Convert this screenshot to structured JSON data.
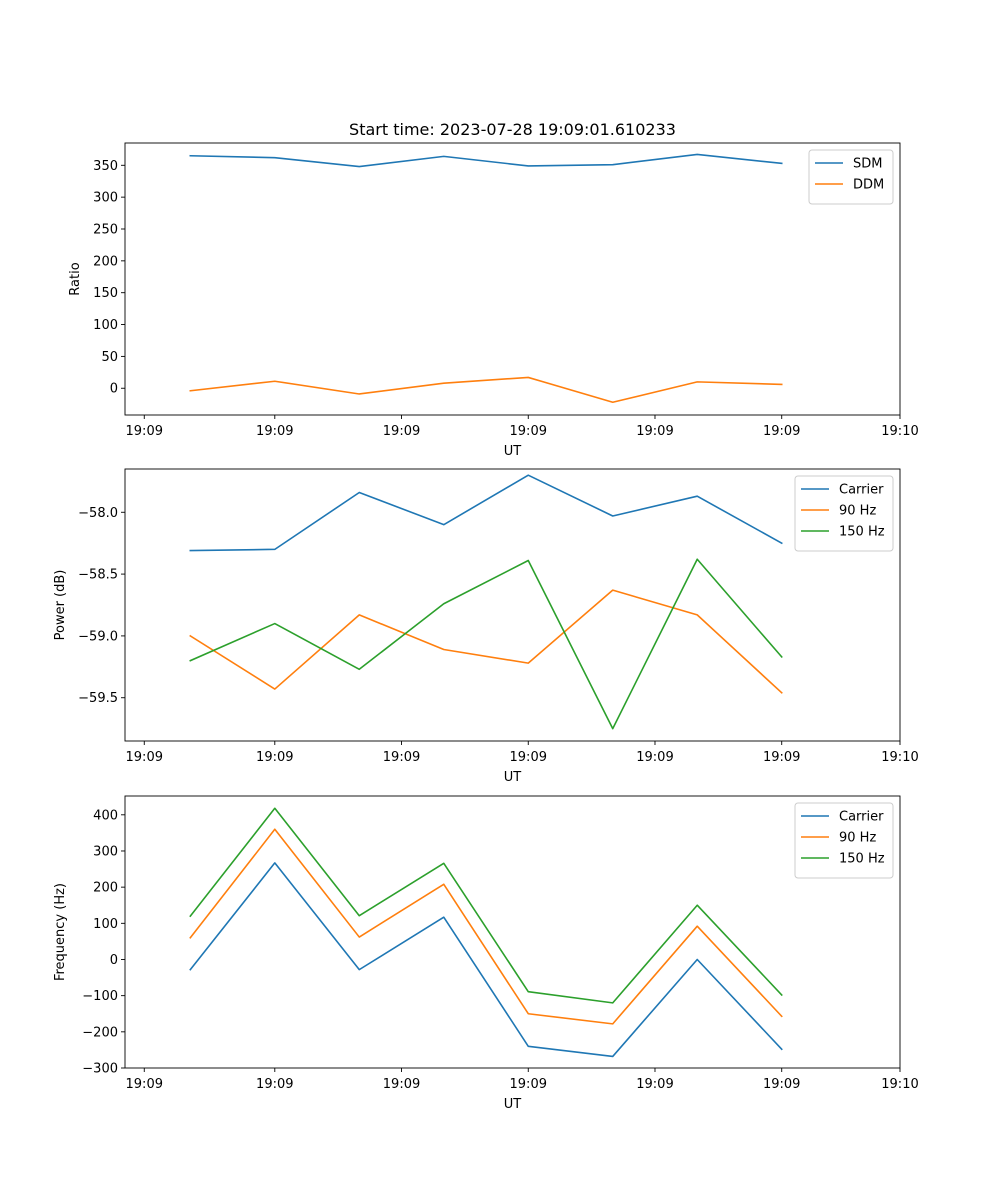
{
  "chart_data": [
    {
      "type": "line",
      "title": "Start time: 2023-07-28 19:09:01.610233",
      "xlabel": "UT",
      "ylabel": "Ratio",
      "x": [
        1,
        2,
        3,
        4,
        5,
        6,
        7,
        8
      ],
      "xlim": [
        0.227,
        9.4
      ],
      "x_ticks": [
        0.455,
        2.0,
        3.5,
        5.0,
        6.5,
        8.0,
        9.4
      ],
      "x_tick_labels": [
        "19:09",
        "19:09",
        "19:09",
        "19:09",
        "19:09",
        "19:09",
        "19:10"
      ],
      "ylim": [
        -42,
        385
      ],
      "y_ticks": [
        0,
        50,
        100,
        150,
        200,
        250,
        300,
        350
      ],
      "y_tick_labels": [
        "0",
        "50",
        "100",
        "150",
        "200",
        "250",
        "300",
        "350"
      ],
      "legend_position": "top-right",
      "series": [
        {
          "name": "SDM",
          "color": "#1f77b4",
          "values": [
            365,
            362,
            348,
            364,
            349,
            351,
            367,
            353
          ]
        },
        {
          "name": "DDM",
          "color": "#ff7f0e",
          "values": [
            -4,
            11,
            -9,
            8,
            17,
            -22,
            10,
            6
          ]
        }
      ]
    },
    {
      "type": "line",
      "title": "",
      "xlabel": "UT",
      "ylabel": "Power (dB)",
      "x": [
        1,
        2,
        3,
        4,
        5,
        6,
        7,
        8
      ],
      "xlim": [
        0.227,
        9.4
      ],
      "x_ticks": [
        0.455,
        2.0,
        3.5,
        5.0,
        6.5,
        8.0,
        9.4
      ],
      "x_tick_labels": [
        "19:09",
        "19:09",
        "19:09",
        "19:09",
        "19:09",
        "19:09",
        "19:10"
      ],
      "ylim": [
        -59.85,
        -57.65
      ],
      "y_ticks": [
        -58.0,
        -58.5,
        -59.0,
        -59.5
      ],
      "y_tick_labels": [
        "−58.0",
        "−58.5",
        "−59.0",
        "−59.5"
      ],
      "legend_position": "top-right",
      "series": [
        {
          "name": "Carrier",
          "color": "#1f77b4",
          "values": [
            -58.31,
            -58.3,
            -57.84,
            -58.1,
            -57.7,
            -58.03,
            -57.87,
            -58.25
          ]
        },
        {
          "name": "90 Hz",
          "color": "#ff7f0e",
          "values": [
            -59.0,
            -59.43,
            -58.83,
            -59.11,
            -59.22,
            -58.63,
            -58.83,
            -59.46
          ]
        },
        {
          "name": "150 Hz",
          "color": "#2ca02c",
          "values": [
            -59.2,
            -58.9,
            -59.27,
            -58.74,
            -58.39,
            -59.75,
            -58.38,
            -59.17
          ]
        }
      ]
    },
    {
      "type": "line",
      "title": "",
      "xlabel": "UT",
      "ylabel": "Frequency (Hz)",
      "x": [
        1,
        2,
        3,
        4,
        5,
        6,
        7,
        8
      ],
      "xlim": [
        0.227,
        9.4
      ],
      "x_ticks": [
        0.455,
        2.0,
        3.5,
        5.0,
        6.5,
        8.0,
        9.4
      ],
      "x_tick_labels": [
        "19:09",
        "19:09",
        "19:09",
        "19:09",
        "19:09",
        "19:09",
        "19:10"
      ],
      "ylim": [
        -300,
        452
      ],
      "y_ticks": [
        -300,
        -200,
        -100,
        0,
        100,
        200,
        300,
        400
      ],
      "y_tick_labels": [
        "−300",
        "−200",
        "−100",
        "0",
        "100",
        "200",
        "300",
        "400"
      ],
      "legend_position": "top-right",
      "series": [
        {
          "name": "Carrier",
          "color": "#1f77b4",
          "values": [
            -28,
            267,
            -28,
            117,
            -240,
            -268,
            0,
            -248
          ]
        },
        {
          "name": "90 Hz",
          "color": "#ff7f0e",
          "values": [
            60,
            360,
            62,
            208,
            -150,
            -178,
            92,
            -157
          ]
        },
        {
          "name": "150 Hz",
          "color": "#2ca02c",
          "values": [
            120,
            418,
            121,
            266,
            -89,
            -120,
            150,
            -98
          ]
        }
      ]
    }
  ]
}
